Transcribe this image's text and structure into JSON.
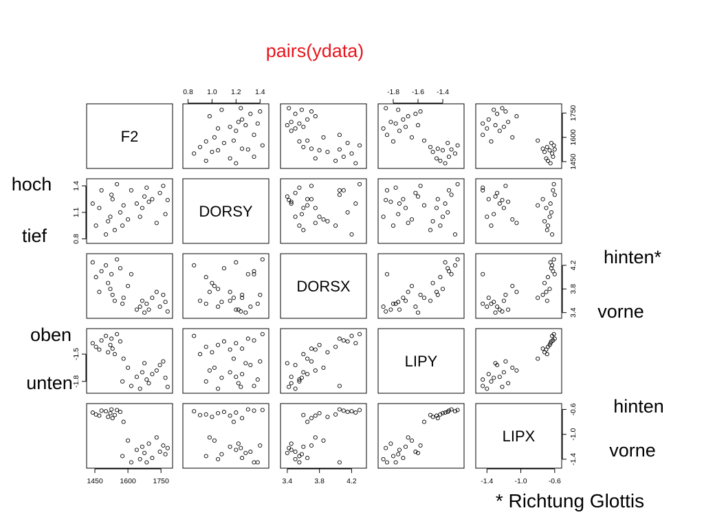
{
  "title": "pairs(ydata)",
  "footnote": "* Richtung Glottis",
  "chart_data": {
    "type": "scatter",
    "variables": [
      {
        "name": "F2",
        "range": [
          1425,
          1790
        ],
        "ticks": [
          {
            "v": 1450,
            "t": "1450"
          },
          {
            "v": 1600,
            "t": "1600"
          },
          {
            "v": 1750,
            "t": "1750"
          }
        ]
      },
      {
        "name": "DORSY",
        "range": [
          0.78,
          1.45
        ],
        "ticks": [
          {
            "v": 0.8,
            "t": "0.8"
          },
          {
            "v": 1.0,
            "t": "1.0"
          },
          {
            "v": 1.2,
            "t": "1.2"
          },
          {
            "v": 1.4,
            "t": "1.4"
          }
        ]
      },
      {
        "name": "DORSX",
        "range": [
          3.35,
          4.35
        ],
        "ticks": [
          {
            "v": 3.4,
            "t": "3.4"
          },
          {
            "v": 3.8,
            "t": "3.8"
          },
          {
            "v": 4.2,
            "t": "4.2"
          }
        ]
      },
      {
        "name": "LIPY",
        "range": [
          -1.9,
          -1.25
        ],
        "ticks": [
          {
            "v": -1.8,
            "t": "-1.8"
          },
          {
            "v": -1.6,
            "t": "-1.6"
          },
          {
            "v": -1.4,
            "t": "-1.4"
          }
        ]
      },
      {
        "name": "LIPX",
        "range": [
          -1.5,
          -0.55
        ],
        "ticks": [
          {
            "v": -1.4,
            "t": "-1.4"
          },
          {
            "v": -1.0,
            "t": "-1.0"
          },
          {
            "v": -0.6,
            "t": "-0.6"
          }
        ]
      }
    ],
    "left_tick_labels": {
      "DORSY": [
        {
          "v": 0.8,
          "t": "0.8"
        },
        {
          "v": 1.1,
          "t": "1.1"
        },
        {
          "v": 1.4,
          "t": "1.4"
        }
      ],
      "LIPY": [
        {
          "v": -1.5,
          "t": "-1.5"
        },
        {
          "v": -1.8,
          "t": "-1.8"
        }
      ]
    },
    "right_tick_labels": {
      "F2": [
        {
          "v": 1450,
          "t": "1450"
        },
        {
          "v": 1600,
          "t": "1600"
        },
        {
          "v": 1750,
          "t": "1750"
        }
      ],
      "DORSX": [
        {
          "v": 3.4,
          "t": "3.4"
        },
        {
          "v": 3.8,
          "t": "3.8"
        },
        {
          "v": 4.2,
          "t": "4.2"
        }
      ],
      "LIPX": [
        {
          "v": -1.4,
          "t": "-1.4"
        },
        {
          "v": -1.0,
          "t": "-1.0"
        },
        {
          "v": -0.6,
          "t": "-0.6"
        }
      ]
    },
    "observations": [
      {
        "F2": 1440,
        "DORSY": 1.2,
        "DORSX": 4.25,
        "LIPY": -1.38,
        "LIPX": -0.65
      },
      {
        "F2": 1455,
        "DORSY": 0.95,
        "DORSX": 4.0,
        "LIPY": -1.42,
        "LIPX": -0.68
      },
      {
        "F2": 1470,
        "DORSY": 1.15,
        "DORSX": 3.75,
        "LIPY": -1.45,
        "LIPX": -0.7
      },
      {
        "F2": 1480,
        "DORSY": 1.35,
        "DORSX": 4.1,
        "LIPY": -1.35,
        "LIPX": -0.62
      },
      {
        "F2": 1500,
        "DORSY": 0.85,
        "DORSX": 4.2,
        "LIPY": -1.3,
        "LIPX": -0.63
      },
      {
        "F2": 1510,
        "DORSY": 1.0,
        "DORSX": 3.9,
        "LIPY": -1.48,
        "LIPX": -0.72
      },
      {
        "F2": 1520,
        "DORSY": 1.05,
        "DORSX": 3.8,
        "LIPY": -1.4,
        "LIPX": -0.66
      },
      {
        "F2": 1525,
        "DORSY": 1.3,
        "DORSX": 4.05,
        "LIPY": -1.33,
        "LIPX": -0.6
      },
      {
        "F2": 1530,
        "DORSY": 1.25,
        "DORSX": 3.7,
        "LIPY": -1.44,
        "LIPX": -0.74
      },
      {
        "F2": 1540,
        "DORSY": 0.9,
        "DORSX": 3.6,
        "LIPY": -1.5,
        "LIPX": -0.69
      },
      {
        "F2": 1550,
        "DORSY": 1.42,
        "DORSX": 4.3,
        "LIPY": -1.28,
        "LIPX": -0.61
      },
      {
        "F2": 1565,
        "DORSY": 1.1,
        "DORSX": 4.15,
        "LIPY": -1.36,
        "LIPX": -0.64
      },
      {
        "F2": 1575,
        "DORSY": 0.95,
        "DORSX": 3.55,
        "LIPY": -1.8,
        "LIPX": -1.35
      },
      {
        "F2": 1580,
        "DORSY": 1.18,
        "DORSX": 3.65,
        "LIPY": -1.55,
        "LIPX": -0.8
      },
      {
        "F2": 1600,
        "DORSY": 1.02,
        "DORSX": 3.85,
        "LIPY": -1.65,
        "LIPX": -1.1
      },
      {
        "F2": 1615,
        "DORSY": 1.35,
        "DORSX": 4.05,
        "LIPY": -1.85,
        "LIPX": -1.45
      },
      {
        "F2": 1640,
        "DORSY": 1.2,
        "DORSX": 3.45,
        "LIPY": -1.75,
        "LIPX": -1.25
      },
      {
        "F2": 1655,
        "DORSY": 1.05,
        "DORSX": 3.5,
        "LIPY": -1.88,
        "LIPX": -1.4
      },
      {
        "F2": 1665,
        "DORSY": 1.15,
        "DORSX": 3.6,
        "LIPY": -1.7,
        "LIPX": -1.2
      },
      {
        "F2": 1675,
        "DORSY": 1.28,
        "DORSX": 3.4,
        "LIPY": -1.6,
        "LIPX": -1.3
      },
      {
        "F2": 1685,
        "DORSY": 1.38,
        "DORSX": 3.55,
        "LIPY": -1.78,
        "LIPX": -1.45
      },
      {
        "F2": 1695,
        "DORSY": 1.22,
        "DORSX": 3.45,
        "LIPY": -1.82,
        "LIPX": -1.15
      },
      {
        "F2": 1710,
        "DORSY": 1.25,
        "DORSX": 3.65,
        "LIPY": -1.72,
        "LIPX": -1.38
      },
      {
        "F2": 1730,
        "DORSY": 0.98,
        "DORSX": 3.75,
        "LIPY": -1.68,
        "LIPX": -1.05
      },
      {
        "F2": 1745,
        "DORSY": 1.32,
        "DORSX": 3.5,
        "LIPY": -1.62,
        "LIPX": -1.28
      },
      {
        "F2": 1760,
        "DORSY": 1.4,
        "DORSX": 3.7,
        "LIPY": -1.58,
        "LIPX": -1.18
      },
      {
        "F2": 1770,
        "DORSY": 1.08,
        "DORSX": 3.58,
        "LIPY": -1.76,
        "LIPX": -1.32
      },
      {
        "F2": 1780,
        "DORSY": 1.24,
        "DORSX": 3.42,
        "LIPY": -1.86,
        "LIPX": -1.22
      }
    ]
  },
  "annotations": {
    "hoch": "hoch",
    "tief": "tief",
    "hinten_star": "hinten*",
    "vorne_1": "vorne",
    "oben": "oben",
    "unten": "unten",
    "hinten": "hinten",
    "vorne_2": "vorne"
  }
}
